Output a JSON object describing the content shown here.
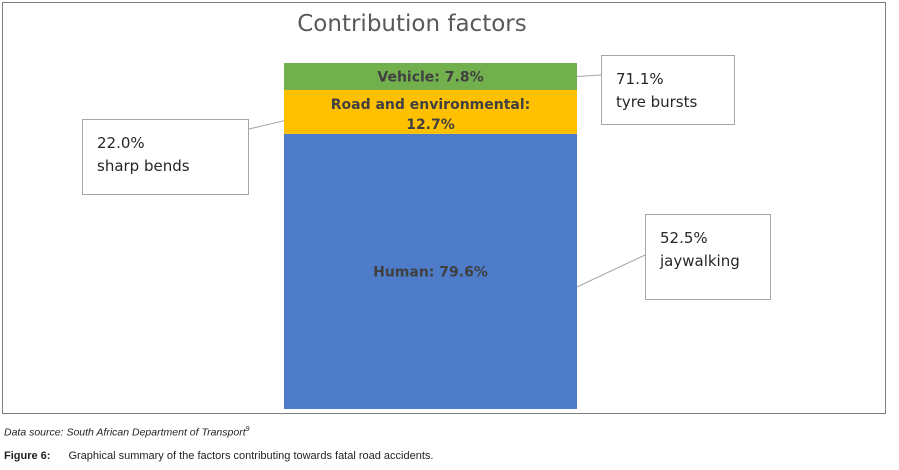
{
  "chart_data": {
    "type": "bar",
    "title": "Contribution factors",
    "stacked": true,
    "series": [
      {
        "name": "Human",
        "label": "Human: 79.6%",
        "value": 79.6,
        "color": "#4e7cc9"
      },
      {
        "name": "Road and environmental",
        "label_line1": "Road and environmental:",
        "label_line2": "12.7%",
        "value": 12.7,
        "color": "#ffc000"
      },
      {
        "name": "Vehicle",
        "label": "Vehicle: 7.8%",
        "value": 7.8,
        "color": "#71b04d"
      }
    ],
    "annotations": [
      {
        "segment": "Vehicle",
        "line1": "71.1%",
        "line2": "tyre bursts"
      },
      {
        "segment": "Road and environmental",
        "line1": "22.0%",
        "line2": "sharp bends"
      },
      {
        "segment": "Human",
        "line1": "52.5%",
        "line2": "jaywalking"
      }
    ]
  },
  "source_note": {
    "text": "Data source: South African Department of Transport",
    "ref": "9"
  },
  "caption": {
    "label": "Figure 6:",
    "text": "Graphical summary of the factors contributing towards fatal road accidents."
  }
}
